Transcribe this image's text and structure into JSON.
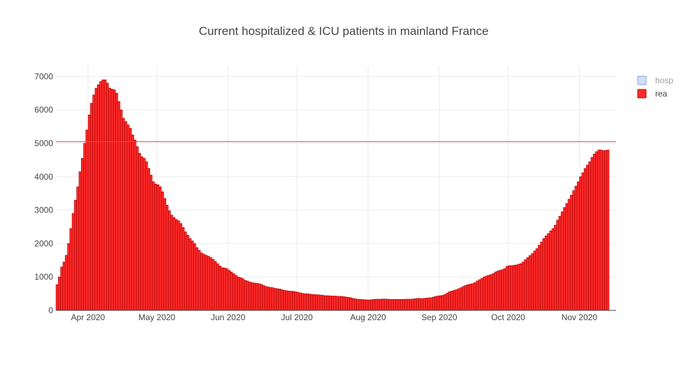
{
  "chart_data": {
    "type": "bar",
    "title": "Current hospitalized & ICU patients in mainland France",
    "xlabel": "",
    "ylabel": "",
    "x_range": [
      "2020-03-18",
      "2020-11-17"
    ],
    "ylim": [
      0,
      7300
    ],
    "y_ticks": [
      0,
      1000,
      2000,
      3000,
      4000,
      5000,
      6000,
      7000
    ],
    "y_tick_labels": [
      "0",
      "1000",
      "2000",
      "3000",
      "4000",
      "5000",
      "6000",
      "7000"
    ],
    "x_ticks": [
      "2020-04-01",
      "2020-05-01",
      "2020-06-01",
      "2020-07-01",
      "2020-08-01",
      "2020-09-01",
      "2020-10-01",
      "2020-11-01"
    ],
    "x_tick_labels": [
      "Apr 2020",
      "May 2020",
      "Jun 2020",
      "Jul 2020",
      "Aug 2020",
      "Sep 2020",
      "Oct 2020",
      "Nov 2020"
    ],
    "grid": true,
    "legend_position": "top-right",
    "reference_line": {
      "y": 5050,
      "color": "#e8474f"
    },
    "series": [
      {
        "name": "hosp",
        "legend_state": "hidden",
        "fill": "#c6d9f5",
        "stroke": "#6c8fd6",
        "values": []
      },
      {
        "name": "rea",
        "fill": "#ff2b2b",
        "stroke": "#b30000",
        "start_date": "2020-03-18",
        "values": [
          771,
          1000,
          1300,
          1450,
          1650,
          2000,
          2450,
          2900,
          3300,
          3700,
          4150,
          4550,
          5000,
          5400,
          5850,
          6200,
          6450,
          6650,
          6750,
          6850,
          6900,
          6900,
          6800,
          6650,
          6620,
          6600,
          6500,
          6250,
          6000,
          5750,
          5650,
          5550,
          5450,
          5250,
          5100,
          4900,
          4700,
          4600,
          4550,
          4450,
          4250,
          4050,
          3850,
          3780,
          3760,
          3700,
          3550,
          3350,
          3150,
          2980,
          2850,
          2780,
          2720,
          2680,
          2600,
          2480,
          2350,
          2250,
          2150,
          2080,
          2000,
          1880,
          1800,
          1720,
          1680,
          1650,
          1620,
          1580,
          1530,
          1470,
          1400,
          1330,
          1280,
          1270,
          1250,
          1200,
          1150,
          1100,
          1050,
          1000,
          980,
          950,
          900,
          880,
          850,
          830,
          820,
          810,
          800,
          780,
          750,
          720,
          700,
          690,
          680,
          660,
          650,
          640,
          620,
          600,
          590,
          580,
          575,
          570,
          560,
          540,
          525,
          510,
          500,
          495,
          490,
          480,
          475,
          470,
          465,
          460,
          450,
          440,
          440,
          435,
          430,
          430,
          425,
          420,
          420,
          410,
          400,
          390,
          380,
          360,
          345,
          335,
          330,
          325,
          320,
          315,
          315,
          320,
          330,
          335,
          335,
          335,
          340,
          340,
          335,
          330,
          330,
          330,
          330,
          330,
          330,
          330,
          335,
          335,
          335,
          340,
          350,
          360,
          360,
          350,
          360,
          370,
          375,
          380,
          400,
          420,
          430,
          440,
          450,
          480,
          520,
          560,
          580,
          600,
          620,
          650,
          680,
          720,
          750,
          770,
          790,
          800,
          830,
          880,
          920,
          960,
          1000,
          1030,
          1050,
          1070,
          1100,
          1150,
          1180,
          1200,
          1220,
          1250,
          1320,
          1340,
          1340,
          1350,
          1360,
          1380,
          1400,
          1450,
          1520,
          1580,
          1640,
          1700,
          1780,
          1850,
          1950,
          2050,
          2150,
          2230,
          2300,
          2380,
          2450,
          2550,
          2700,
          2820,
          2950,
          3080,
          3200,
          3330,
          3450,
          3580,
          3720,
          3850,
          4000,
          4120,
          4250,
          4350,
          4450,
          4580,
          4680,
          4750,
          4800,
          4800,
          4780,
          4790,
          4800
        ]
      }
    ]
  }
}
